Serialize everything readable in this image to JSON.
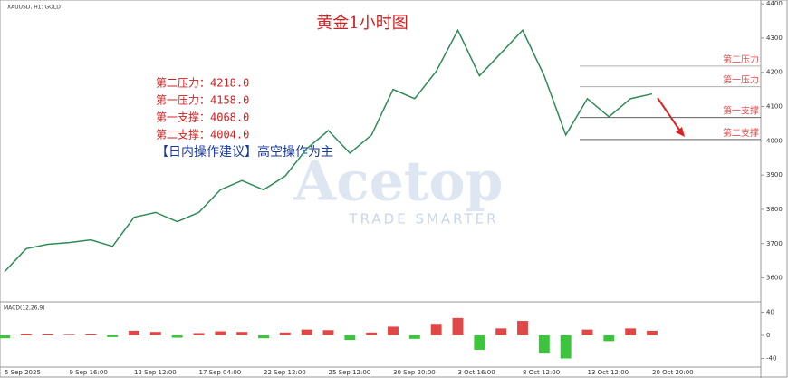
{
  "chart_data": [
    {
      "type": "line",
      "symbol_label": "XAUUSD, H1: GOLD",
      "title": "黄金1小时图",
      "notes": [
        "第二压力：4218.0",
        "第一压力：4158.0",
        "第一支撑：4068.0",
        "第二支撑：4004.0"
      ],
      "advice": "【日内操作建议】高空操作为主",
      "watermark": "Acetop",
      "watermark_sub": "TRADE SMARTER",
      "levels": [
        {
          "name": "第二压力",
          "value": 4218,
          "color": "#b0b0b0"
        },
        {
          "name": "第一压力",
          "value": 4158,
          "color": "#b0b0b0"
        },
        {
          "name": "第一支撑",
          "value": 4068,
          "color": "#606060"
        },
        {
          "name": "第二支撑",
          "value": 4004,
          "color": "#606060"
        }
      ],
      "categories": [
        "5 Sep 2025",
        null,
        null,
        "9 Sep 16:00",
        null,
        null,
        "12 Sep 12:00",
        null,
        null,
        "17 Sep 04:00",
        null,
        null,
        "22 Sep 12:00",
        null,
        null,
        "25 Sep 12:00",
        null,
        null,
        "30 Sep 20:00",
        null,
        null,
        "3 Oct 16:00",
        null,
        null,
        "8 Oct 12:00",
        null,
        null,
        "13 Oct 12:00",
        null,
        null,
        "20 Oct 20:00"
      ],
      "series": [
        {
          "name": "XAUUSD",
          "color": "#2e8b57",
          "values": [
            3618,
            3685,
            3698,
            3703,
            3711,
            3692,
            3777,
            3791,
            3764,
            3791,
            3857,
            3884,
            3857,
            3897,
            3977,
            4030,
            3964,
            4017,
            4150,
            4123,
            4203,
            4323,
            4190,
            4256,
            4323,
            4190,
            4017,
            4123,
            4070,
            4123,
            4137
          ]
        }
      ],
      "ylim": [
        3538,
        4403
      ],
      "yticks": [
        3600,
        3700,
        3800,
        3900,
        4000,
        4100,
        4200,
        4300,
        4400
      ]
    },
    {
      "type": "bar",
      "title": "MACD(12,26,9)",
      "values": [
        -5,
        3,
        2,
        1,
        2,
        -3,
        8,
        6,
        -4,
        4,
        7,
        6,
        -5,
        5,
        10,
        9,
        -8,
        5,
        15,
        -6,
        20,
        30,
        -25,
        12,
        25,
        -30,
        -40,
        10,
        -10,
        12,
        8
      ],
      "up_color": "#e04848",
      "down_color": "#3cc43c",
      "ylim": [
        -47,
        47
      ],
      "yticks": [
        -40,
        0,
        40
      ]
    }
  ]
}
